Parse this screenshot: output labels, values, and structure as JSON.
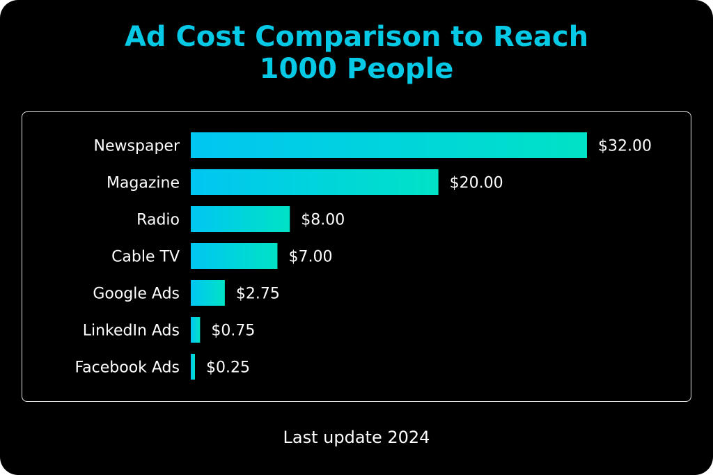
{
  "chart_data": {
    "type": "bar",
    "orientation": "horizontal",
    "title": "Ad Cost Comparison to Reach 1000 People",
    "title_lines": [
      "Ad Cost Comparison to Reach",
      "1000 People"
    ],
    "categories": [
      "Newspaper",
      "Magazine",
      "Radio",
      "Cable TV",
      "Google Ads",
      "LinkedIn Ads",
      "Facebook Ads"
    ],
    "values": [
      32.0,
      20.0,
      8.0,
      7.0,
      2.75,
      0.75,
      0.25
    ],
    "data_labels": [
      "$32.00",
      "$20.00",
      "$8.00",
      "$7.00",
      "$2.75",
      "$0.75",
      "$0.25"
    ],
    "xlabel": "",
    "ylabel": "",
    "grid": false,
    "colors": {
      "bar_start": "#00c6f2",
      "bar_end": "#00e2c6",
      "title": "#06c9e6",
      "background": "#000000",
      "text": "#ffffff"
    }
  },
  "footer": "Last update 2024"
}
